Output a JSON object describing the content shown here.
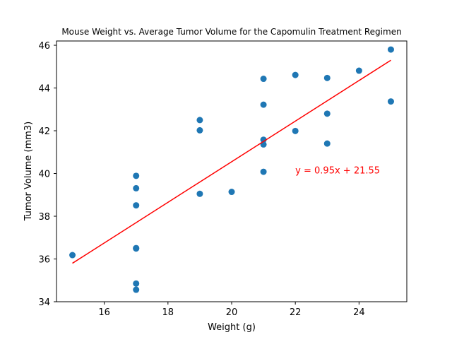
{
  "chart_data": {
    "type": "scatter",
    "title": "Mouse Weight vs. Average Tumor Volume for the Capomulin Treatment Regimen",
    "xlabel": "Weight (g)",
    "ylabel": "Tumor Volume (mm3)",
    "xlim": [
      14.5,
      25.5
    ],
    "ylim": [
      34,
      46.2
    ],
    "xticks": [
      16,
      18,
      20,
      22,
      24
    ],
    "yticks": [
      34,
      36,
      38,
      40,
      42,
      44,
      46
    ],
    "xtick_labels": [
      "16",
      "18",
      "20",
      "22",
      "24"
    ],
    "ytick_labels": [
      "34",
      "36",
      "38",
      "40",
      "42",
      "44",
      "46"
    ],
    "grid": false,
    "legend": "none",
    "colors": {
      "points": "#1f77b4",
      "regression": "#ff0000",
      "axes": "#000000"
    },
    "points": [
      {
        "x": 15,
        "y": 36.18
      },
      {
        "x": 17,
        "y": 39.89
      },
      {
        "x": 17,
        "y": 39.31
      },
      {
        "x": 17,
        "y": 38.51
      },
      {
        "x": 17,
        "y": 36.51
      },
      {
        "x": 17,
        "y": 36.49
      },
      {
        "x": 17,
        "y": 34.85
      },
      {
        "x": 17,
        "y": 34.56
      },
      {
        "x": 19,
        "y": 42.5
      },
      {
        "x": 19,
        "y": 42.02
      },
      {
        "x": 19,
        "y": 39.05
      },
      {
        "x": 20,
        "y": 39.14
      },
      {
        "x": 21,
        "y": 44.43
      },
      {
        "x": 21,
        "y": 43.22
      },
      {
        "x": 21,
        "y": 41.58
      },
      {
        "x": 21,
        "y": 41.36
      },
      {
        "x": 21,
        "y": 40.08
      },
      {
        "x": 22,
        "y": 44.61
      },
      {
        "x": 22,
        "y": 41.99
      },
      {
        "x": 23,
        "y": 44.47
      },
      {
        "x": 23,
        "y": 42.8
      },
      {
        "x": 23,
        "y": 41.4
      },
      {
        "x": 24,
        "y": 44.81
      },
      {
        "x": 25,
        "y": 45.8
      },
      {
        "x": 25,
        "y": 43.37
      }
    ],
    "regression": {
      "slope": 0.95,
      "intercept": 21.55,
      "x_range": [
        15,
        25
      ],
      "equation_label": "y = 0.95x + 21.55",
      "label_x": 22,
      "label_y": 40
    }
  }
}
